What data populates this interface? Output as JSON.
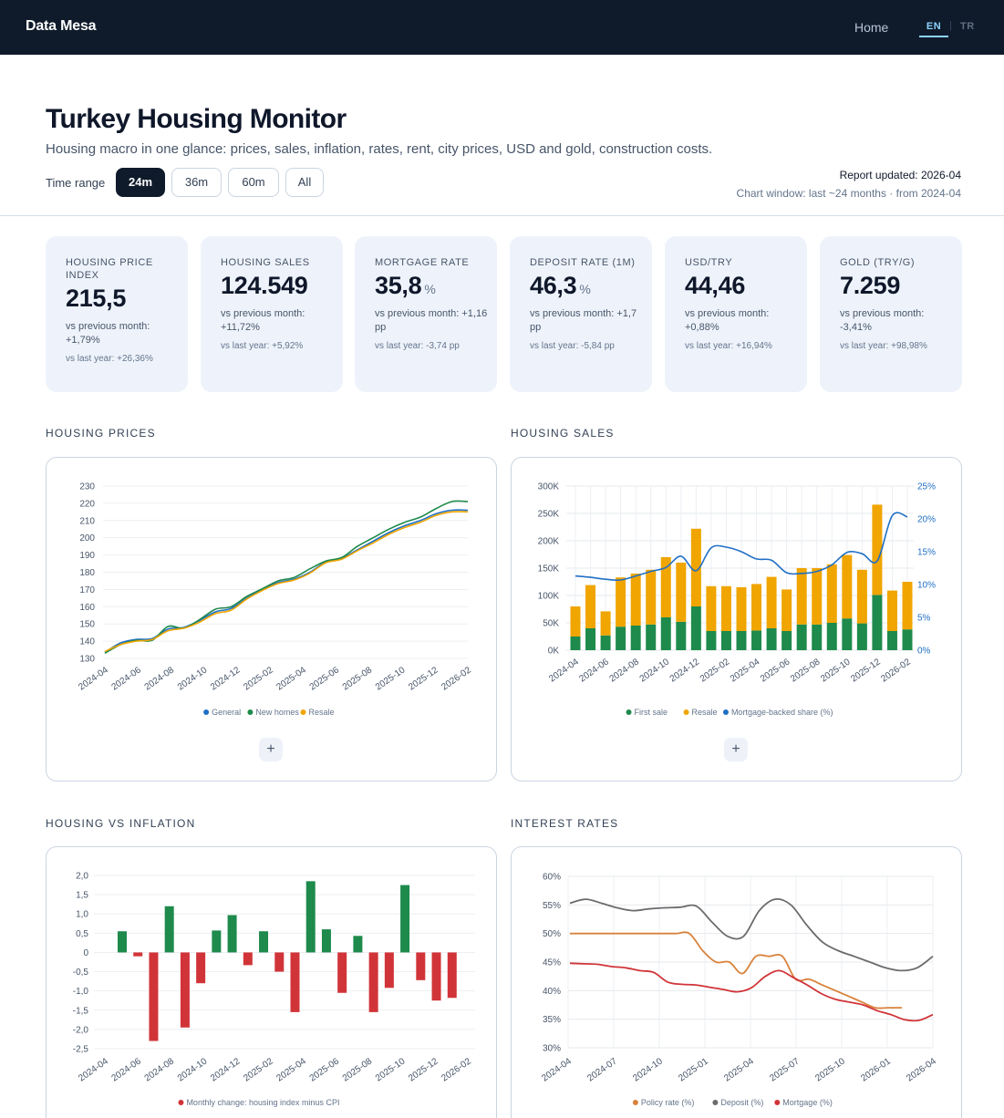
{
  "nav": {
    "brand": "Data Mesa",
    "home": "Home",
    "lang_en": "EN",
    "lang_tr": "TR"
  },
  "header": {
    "title": "Turkey Housing Monitor",
    "subtitle": "Housing macro in one glance: prices, sales, inflation, rates, rent, city prices, USD and gold, construction costs.",
    "time_range_label": "Time range",
    "ranges": [
      "24m",
      "36m",
      "60m",
      "All"
    ],
    "active_range": "24m",
    "report_updated": "Report updated: 2026-04",
    "chart_window": "Chart window: last ~24 months · from 2024-04"
  },
  "kpis": [
    {
      "label": "HOUSING PRICE INDEX",
      "value": "215,5",
      "unit": "",
      "mom": "vs previous month: +1,79%",
      "yoy": "vs last year: +26,36%"
    },
    {
      "label": "HOUSING SALES",
      "value": "124.549",
      "unit": "",
      "mom": "vs previous month: +11,72%",
      "yoy": "vs last year: +5,92%"
    },
    {
      "label": "MORTGAGE RATE",
      "value": "35,8",
      "unit": "%",
      "mom": "vs previous month: +1,16 pp",
      "yoy": "vs last year: -3,74 pp"
    },
    {
      "label": "DEPOSIT RATE (1M)",
      "value": "46,3",
      "unit": "%",
      "mom": "vs previous month: +1,7 pp",
      "yoy": "vs last year: -5,84 pp"
    },
    {
      "label": "USD/TRY",
      "value": "44,46",
      "unit": "",
      "mom": "vs previous month: +0,88%",
      "yoy": "vs last year: +16,94%"
    },
    {
      "label": "GOLD (TRY/G)",
      "value": "7.259",
      "unit": "",
      "mom": "vs previous month: -3,41%",
      "yoy": "vs last year: +98,98%"
    }
  ],
  "sections": {
    "prices": "HOUSING PRICES",
    "sales": "HOUSING SALES",
    "inflation": "HOUSING VS INFLATION",
    "rates": "INTEREST RATES"
  },
  "plus_label": "+",
  "colors": {
    "blue": "#1f6fc5",
    "green": "#1e8a4c",
    "amber": "#f0a500",
    "red": "#d13438",
    "orange": "#d9823b",
    "gray": "#6b6b6b"
  },
  "chart_data": [
    {
      "id": "housing-prices",
      "type": "line",
      "x": [
        "2024-04",
        "2024-05",
        "2024-06",
        "2024-07",
        "2024-08",
        "2024-09",
        "2024-10",
        "2024-11",
        "2024-12",
        "2025-01",
        "2025-02",
        "2025-03",
        "2025-04",
        "2025-05",
        "2025-06",
        "2025-07",
        "2025-08",
        "2025-09",
        "2025-10",
        "2025-11",
        "2025-12",
        "2026-01",
        "2026-02",
        "2026-03"
      ],
      "x_tick_labels": [
        "2024-04",
        "2024-06",
        "2024-08",
        "2024-10",
        "2024-12",
        "2025-02",
        "2025-04",
        "2025-06",
        "2025-08",
        "2025-10",
        "2025-12",
        "2026-02"
      ],
      "ylim": [
        130,
        230
      ],
      "y_ticks": [
        130,
        140,
        150,
        160,
        170,
        180,
        190,
        200,
        210,
        220,
        230
      ],
      "series": [
        {
          "name": "General",
          "color": "#1f6fc5",
          "values": [
            133.5,
            139,
            141,
            141.5,
            147,
            148,
            152,
            157,
            159,
            165,
            170,
            174,
            176,
            180,
            186,
            188,
            193,
            198,
            203,
            207,
            210,
            214,
            216,
            216
          ]
        },
        {
          "name": "New homes",
          "color": "#1e8a4c",
          "values": [
            133,
            138,
            140.5,
            140.5,
            148.5,
            147.5,
            152.5,
            158.5,
            160,
            166,
            170.5,
            175,
            177,
            182,
            186.5,
            188.5,
            195,
            200,
            205,
            209,
            212,
            217,
            221,
            221
          ]
        },
        {
          "name": "Resale",
          "color": "#f0a500",
          "values": [
            134,
            138,
            140,
            141,
            146,
            147.5,
            151,
            156,
            158,
            164.5,
            169.5,
            173.5,
            175.5,
            179.5,
            185.5,
            187.5,
            192.5,
            197,
            202,
            206,
            209,
            213,
            215,
            215
          ]
        }
      ],
      "grid": true,
      "legend": "bottom"
    },
    {
      "id": "housing-sales",
      "type": "bar",
      "x": [
        "2024-04",
        "2024-05",
        "2024-06",
        "2024-07",
        "2024-08",
        "2024-09",
        "2024-10",
        "2024-11",
        "2024-12",
        "2025-01",
        "2025-02",
        "2025-03",
        "2025-04",
        "2025-05",
        "2025-06",
        "2025-07",
        "2025-08",
        "2025-09",
        "2025-10",
        "2025-11",
        "2025-12",
        "2026-01",
        "2026-02"
      ],
      "x_tick_labels": [
        "2024-04",
        "2024-06",
        "2024-08",
        "2024-10",
        "2024-12",
        "2025-02",
        "2025-04",
        "2025-06",
        "2025-08",
        "2025-10",
        "2025-12",
        "2026-02"
      ],
      "stacked": true,
      "ylim": [
        0,
        300000
      ],
      "y_ticks": [
        "0K",
        "50K",
        "100K",
        "150K",
        "200K",
        "250K",
        "300K"
      ],
      "y2lim": [
        0,
        25
      ],
      "y2_ticks": [
        "0%",
        "5%",
        "10%",
        "15%",
        "20%",
        "25%"
      ],
      "series": [
        {
          "name": "First sale",
          "color": "#1e8a4c",
          "values": [
            25000,
            40000,
            27000,
            43000,
            45000,
            47000,
            60000,
            52000,
            80000,
            35000,
            35000,
            35000,
            36000,
            40000,
            35000,
            47000,
            47000,
            50000,
            58000,
            49000,
            101000,
            35000,
            38000
          ]
        },
        {
          "name": "Resale",
          "color": "#f0a500",
          "values": [
            55000,
            79000,
            44000,
            90000,
            95000,
            100000,
            110000,
            108000,
            142000,
            82000,
            82000,
            80000,
            85000,
            94000,
            76000,
            103000,
            103000,
            107000,
            116000,
            98000,
            165000,
            74000,
            87000
          ]
        },
        {
          "name": "Mortgage-backed share (%)",
          "type": "line",
          "axis": "right",
          "color": "#1f6fc5",
          "values": [
            11.3,
            11.1,
            10.8,
            10.7,
            11.3,
            12,
            12.6,
            14.3,
            12.1,
            15.6,
            15.7,
            15,
            13.9,
            13.7,
            11.8,
            11.7,
            12,
            13,
            14.9,
            14.7,
            13.6,
            20.5,
            20.3
          ]
        }
      ],
      "grid": true,
      "legend": "bottom"
    },
    {
      "id": "housing-vs-inflation",
      "type": "bar",
      "x": [
        "2024-04",
        "2024-05",
        "2024-06",
        "2024-07",
        "2024-08",
        "2024-09",
        "2024-10",
        "2024-11",
        "2024-12",
        "2025-01",
        "2025-02",
        "2025-03",
        "2025-04",
        "2025-05",
        "2025-06",
        "2025-07",
        "2025-08",
        "2025-09",
        "2025-10",
        "2025-11",
        "2025-12",
        "2026-01",
        "2026-02"
      ],
      "x_tick_labels": [
        "2024-04",
        "2024-06",
        "2024-08",
        "2024-10",
        "2024-12",
        "2025-02",
        "2025-04",
        "2025-06",
        "2025-08",
        "2025-10",
        "2025-12",
        "2026-02"
      ],
      "ylim": [
        -2.5,
        2.0
      ],
      "y_ticks": [
        "2,0",
        "1,5",
        "1,0",
        "0,5",
        "0",
        "-0,5",
        "-1,0",
        "-1,5",
        "-2,0",
        "-2,5"
      ],
      "series": [
        {
          "name": "Monthly change: housing index minus CPI",
          "positive_color": "#1e8a4c",
          "negative_color": "#d13438",
          "values": [
            0.55,
            -0.1,
            -2.3,
            1.2,
            -1.95,
            -0.8,
            0.57,
            0.97,
            -0.33,
            0.55,
            -0.5,
            -1.55,
            1.85,
            0.6,
            -1.05,
            0.43,
            -1.55,
            -0.92,
            1.75,
            -0.72,
            -1.25,
            -1.18,
            null
          ]
        }
      ],
      "grid": true,
      "legend": "bottom"
    },
    {
      "id": "interest-rates",
      "type": "line",
      "x_tick_labels": [
        "2024-04",
        "2024-07",
        "2024-10",
        "2025-01",
        "2025-04",
        "2025-07",
        "2025-10",
        "2026-01",
        "2026-04"
      ],
      "ylim": [
        30,
        60
      ],
      "y_ticks": [
        "30%",
        "35%",
        "40%",
        "45%",
        "50%",
        "55%",
        "60%"
      ],
      "series": [
        {
          "name": "Policy rate (%)",
          "color": "#d9823b",
          "values": [
            50,
            50,
            50,
            50,
            50,
            50,
            50,
            50,
            50,
            50,
            47,
            45,
            45,
            43,
            46,
            46,
            46,
            42,
            42,
            41,
            40,
            39,
            38,
            37,
            37,
            37
          ]
        },
        {
          "name": "Deposit (%)",
          "color": "#6b6b6b",
          "values": [
            55.3,
            56,
            55.3,
            54.5,
            54,
            54.3,
            54.5,
            54.6,
            54.8,
            52,
            49.5,
            49.5,
            54,
            56,
            55,
            51.5,
            48.5,
            47,
            46,
            45,
            44,
            43.5,
            44,
            46
          ]
        },
        {
          "name": "Mortgage (%)",
          "color": "#d13438",
          "values": [
            44.8,
            44.7,
            44.6,
            44.2,
            44,
            43.5,
            43.2,
            41.5,
            41.1,
            41,
            40.6,
            40.2,
            39.8,
            40.5,
            42.5,
            43.5,
            42.3,
            41,
            39.5,
            38.5,
            38,
            37.5,
            36.5,
            35.8,
            34.9,
            34.8,
            35.8
          ]
        }
      ],
      "grid": true,
      "legend": "bottom"
    }
  ]
}
